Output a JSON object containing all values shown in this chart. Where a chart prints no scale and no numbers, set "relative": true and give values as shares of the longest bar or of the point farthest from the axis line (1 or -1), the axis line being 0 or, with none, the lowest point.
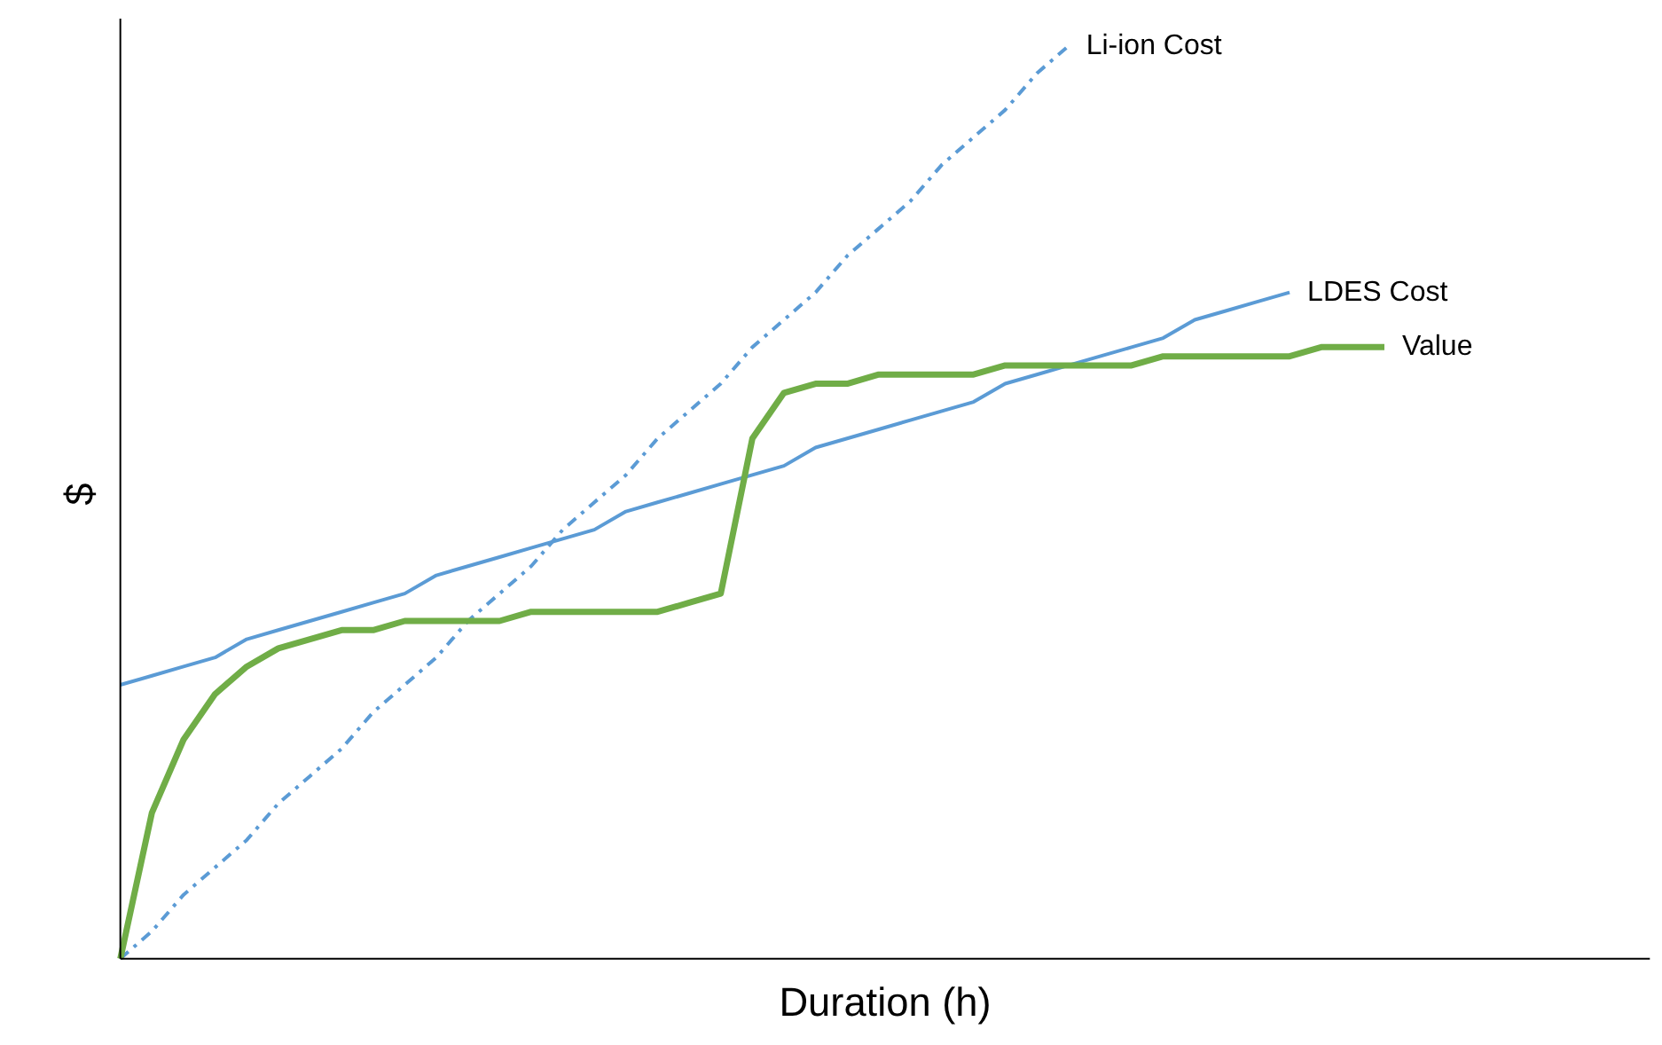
{
  "chart_data": {
    "type": "line",
    "relative": true,
    "xlabel": "Duration (h)",
    "ylabel": "$",
    "legend": false,
    "categories": [
      null,
      null,
      null,
      null,
      null,
      null,
      null,
      null,
      null,
      null,
      null,
      null,
      null,
      null,
      null,
      null,
      null,
      null,
      null,
      null,
      null,
      null,
      null,
      null,
      null,
      null,
      null,
      null,
      null,
      null,
      null,
      null,
      null,
      null,
      null,
      null,
      null,
      null,
      null,
      null,
      null,
      null,
      null,
      null,
      null,
      null,
      null,
      null,
      null
    ],
    "series": [
      {
        "name": "Li-ion Cost",
        "color": "#5b9bd5",
        "line_style": "dashdot",
        "values": [
          0,
          0.03,
          0.07,
          0.1,
          0.13,
          0.17,
          0.2,
          0.23,
          0.27,
          0.3,
          0.33,
          0.37,
          0.4,
          0.43,
          0.47,
          0.5,
          0.53,
          0.57,
          0.6,
          0.63,
          0.67,
          0.7,
          0.73,
          0.77,
          0.8,
          0.83,
          0.87,
          0.9,
          0.93,
          0.97,
          1,
          null,
          null,
          null,
          null,
          null,
          null,
          null,
          null,
          null,
          null,
          null,
          null,
          null,
          null,
          null,
          null,
          null,
          null
        ]
      },
      {
        "name": "LDES Cost",
        "color": "#5b9bd5",
        "line_style": "solid",
        "values": [
          0.3,
          0.31,
          0.32,
          0.33,
          0.35,
          0.36,
          0.37,
          0.38,
          0.39,
          0.4,
          0.42,
          0.43,
          0.44,
          0.45,
          0.46,
          0.47,
          0.49,
          0.5,
          0.51,
          0.52,
          0.53,
          0.54,
          0.56,
          0.57,
          0.58,
          0.59,
          0.6,
          0.61,
          0.63,
          0.64,
          0.65,
          0.66,
          0.67,
          0.68,
          0.7,
          0.71,
          0.72,
          0.73,
          null,
          null,
          null,
          null,
          null,
          null,
          null,
          null,
          null,
          null,
          null
        ]
      },
      {
        "name": "Value",
        "color": "#70ad47",
        "line_style": "solid",
        "values": [
          0,
          0.16,
          0.24,
          0.29,
          0.32,
          0.34,
          0.35,
          0.36,
          0.36,
          0.37,
          0.37,
          0.37,
          0.37,
          0.38,
          0.38,
          0.38,
          0.38,
          0.38,
          0.39,
          0.4,
          0.57,
          0.62,
          0.63,
          0.63,
          0.64,
          0.64,
          0.64,
          0.64,
          0.65,
          0.65,
          0.65,
          0.65,
          0.65,
          0.66,
          0.66,
          0.66,
          0.66,
          0.66,
          0.67,
          0.67,
          0.67,
          null,
          null,
          null,
          null,
          null,
          null,
          null,
          null
        ]
      }
    ]
  }
}
